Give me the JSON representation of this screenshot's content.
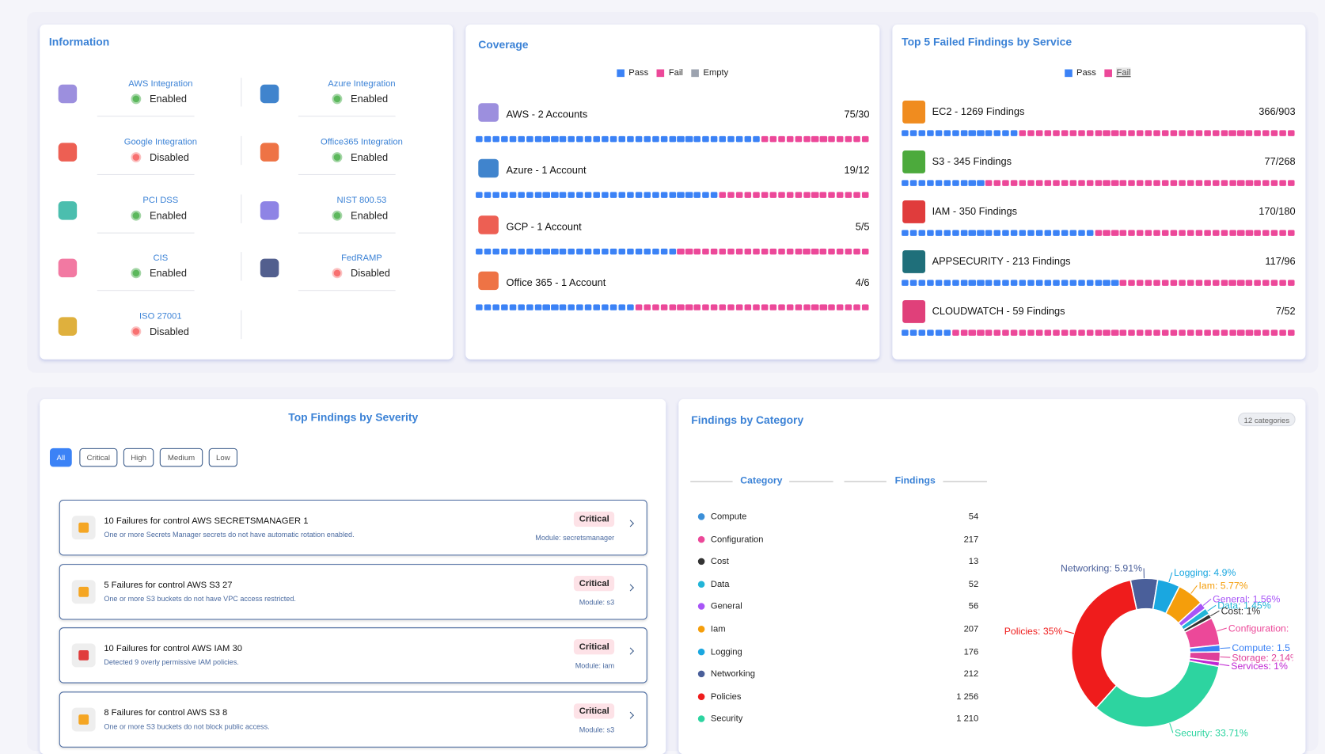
{
  "information": {
    "title": "Information",
    "items": [
      {
        "name": "AWS Integration",
        "status": "Enabled",
        "enabled": true,
        "icon": "#8b7bd8"
      },
      {
        "name": "Azure Integration",
        "status": "Enabled",
        "enabled": true,
        "icon": "#1e6fc4"
      },
      {
        "name": "Google Integration",
        "status": "Disabled",
        "enabled": false,
        "icon": "#ea4335"
      },
      {
        "name": "Office365 Integration",
        "status": "Enabled",
        "enabled": true,
        "icon": "#eb5a24"
      },
      {
        "name": "PCI DSS",
        "status": "Enabled",
        "enabled": true,
        "icon": "#2bb3a0"
      },
      {
        "name": "NIST 800.53",
        "status": "Enabled",
        "enabled": true,
        "icon": "#7a6fe0"
      },
      {
        "name": "CIS",
        "status": "Enabled",
        "enabled": true,
        "icon": "#f06292"
      },
      {
        "name": "FedRAMP",
        "status": "Disabled",
        "enabled": false,
        "icon": "#34437a"
      },
      {
        "name": "ISO 27001",
        "status": "Disabled",
        "enabled": false,
        "icon": "#d9a21b"
      }
    ]
  },
  "coverage": {
    "title": "Coverage",
    "legend": [
      {
        "label": "Pass",
        "color": "#3b82f6"
      },
      {
        "label": "Fail",
        "color": "#ec4899"
      },
      {
        "label": "Empty",
        "color": "#9ca3af"
      }
    ],
    "rows": [
      {
        "label": "AWS - 2 Accounts",
        "ratio": "75/30",
        "pass": 75,
        "fail": 30,
        "icon": "#8b7bd8"
      },
      {
        "label": "Azure - 1 Account",
        "ratio": "19/12",
        "pass": 19,
        "fail": 12,
        "icon": "#1e6fc4"
      },
      {
        "label": "GCP - 1 Account",
        "ratio": "5/5",
        "pass": 5,
        "fail": 5,
        "icon": "#ea4335"
      },
      {
        "label": "Office 365 - 1 Account",
        "ratio": "4/6",
        "pass": 4,
        "fail": 6,
        "icon": "#eb5a24"
      }
    ]
  },
  "top_failed": {
    "title": "Top 5 Failed Findings by Service",
    "legend": [
      {
        "label": "Pass",
        "color": "#3b82f6"
      },
      {
        "label": "Fail",
        "color": "#ec4899"
      }
    ],
    "rows": [
      {
        "label": "EC2 - 1269 Findings",
        "ratio": "366/903",
        "pass": 366,
        "fail": 903,
        "icon": "#f08c1f"
      },
      {
        "label": "S3 - 345 Findings",
        "ratio": "77/268",
        "pass": 77,
        "fail": 268,
        "icon": "#4caa3c"
      },
      {
        "label": "IAM - 350 Findings",
        "ratio": "170/180",
        "pass": 170,
        "fail": 180,
        "icon": "#e03c3c"
      },
      {
        "label": "APPSECURITY - 213 Findings",
        "ratio": "117/96",
        "pass": 117,
        "fail": 96,
        "icon": "#1f6f7a"
      },
      {
        "label": "CLOUDWATCH - 59 Findings",
        "ratio": "7/52",
        "pass": 7,
        "fail": 52,
        "icon": "#e0407a"
      }
    ]
  },
  "severity": {
    "title": "Top Findings by Severity",
    "filters": [
      "All",
      "Critical",
      "High",
      "Medium",
      "Low"
    ],
    "findings": [
      {
        "title": "10 Failures for control AWS SECRETSMANAGER 1",
        "description": "One or more Secrets Manager secrets do not have automatic rotation enabled.",
        "severity": "Critical",
        "module": "Module: secretsmanager",
        "icon": "#f5a623"
      },
      {
        "title": "5 Failures for control AWS S3 27",
        "description": "One or more S3 buckets do not have VPC access restricted.",
        "severity": "Critical",
        "module": "Module: s3",
        "icon": "#f5a623"
      },
      {
        "title": "10 Failures for control AWS IAM 30",
        "description": "Detected 9 overly permissive IAM policies.",
        "severity": "Critical",
        "module": "Module: iam",
        "icon": "#e03c3c"
      },
      {
        "title": "8 Failures for control AWS S3 8",
        "description": "One or more S3 buckets do not block public access.",
        "severity": "Critical",
        "module": "Module: s3",
        "icon": "#f5a623"
      }
    ]
  },
  "category": {
    "title": "Findings by Category",
    "badge": "12 categories",
    "columns": [
      "Category",
      "Findings"
    ],
    "rows": [
      {
        "name": "Compute",
        "count": "54",
        "color": "#3b8fd8"
      },
      {
        "name": "Configuration",
        "count": "217",
        "color": "#ec4899"
      },
      {
        "name": "Cost",
        "count": "13",
        "color": "#333333"
      },
      {
        "name": "Data",
        "count": "52",
        "color": "#22b5d8"
      },
      {
        "name": "General",
        "count": "56",
        "color": "#a855f7"
      },
      {
        "name": "Iam",
        "count": "207",
        "color": "#f59e0b"
      },
      {
        "name": "Logging",
        "count": "176",
        "color": "#1aa7e0"
      },
      {
        "name": "Networking",
        "count": "212",
        "color": "#4a5f9a"
      },
      {
        "name": "Policies",
        "count": "1 256",
        "color": "#ef1c1c"
      },
      {
        "name": "Security",
        "count": "1 210",
        "color": "#2dd4a0"
      }
    ],
    "chart": {
      "type": "pie",
      "values": [
        5.91,
        4.9,
        5.77,
        1.56,
        1.45,
        1,
        6.05,
        1.5,
        2.14,
        1,
        33.71,
        35
      ],
      "value_labels": [
        "Networking: 5.91%",
        "Logging: 4.9%",
        "Iam: 5.77%",
        "General: 1.56%",
        "Data: 1.45%",
        "Cost: 1%",
        "Configuration:",
        "Compute: 1.5",
        "Storage: 2.14%",
        "Services: 1%",
        "Security: 33.71%",
        "Policies: 35%"
      ],
      "colors": [
        "#4a5f9a",
        "#1aa7e0",
        "#f59e0b",
        "#a855f7",
        "#22b5d8",
        "#333333",
        "#ec4899",
        "#3b82f6",
        "#e0409a",
        "#c026d3",
        "#2dd4a0",
        "#ef1c1c"
      ]
    }
  }
}
